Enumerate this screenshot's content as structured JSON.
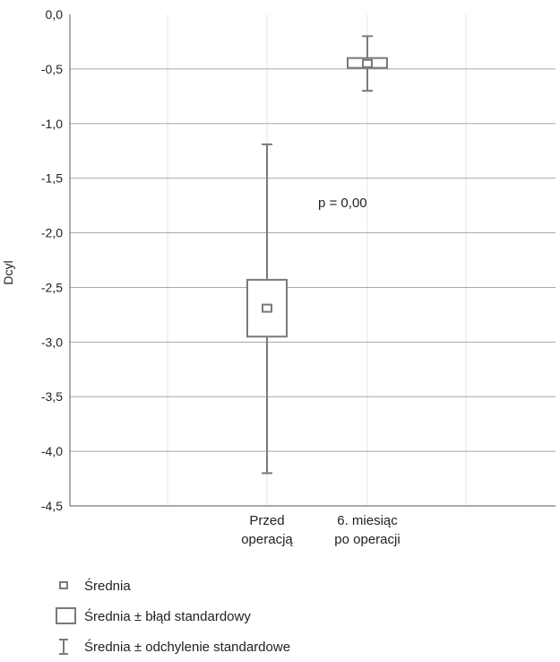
{
  "chart_data": {
    "type": "box",
    "title": "",
    "xlabel": "",
    "ylabel": "Dcyl",
    "ylim": [
      -4.5,
      0.0
    ],
    "yticks": [
      0.0,
      -0.5,
      -1.0,
      -1.5,
      -2.0,
      -2.5,
      -3.0,
      -3.5,
      -4.0,
      -4.5
    ],
    "ytick_labels": [
      "0,0",
      "-0,5",
      "-1,0",
      "-1,5",
      "-2,0",
      "-2,5",
      "-3,0",
      "-3,5",
      "-4,0",
      "-4,5"
    ],
    "grid": true,
    "categories": [
      {
        "label_lines": [
          "Przed",
          "operacją"
        ],
        "mean": -2.69,
        "se_low": -2.95,
        "se_high": -2.43,
        "sd_low": -4.2,
        "sd_high": -1.19
      },
      {
        "label_lines": [
          "6. miesiąc",
          "po operacji"
        ],
        "mean": -0.45,
        "se_low": -0.49,
        "se_high": -0.4,
        "sd_low": -0.7,
        "sd_high": -0.2
      }
    ],
    "annotation": "p = 0,00",
    "legend": {
      "position": "bottom-left",
      "entries": [
        "Średnia",
        "Średnia ± błąd standardowy",
        "Średnia ± odchylenie standardowe"
      ]
    },
    "colors": {
      "mark": "#7a7a7a",
      "grid_h": "#a8a8a8",
      "grid_v": "#e6e6e6",
      "axis": "#555555"
    }
  }
}
